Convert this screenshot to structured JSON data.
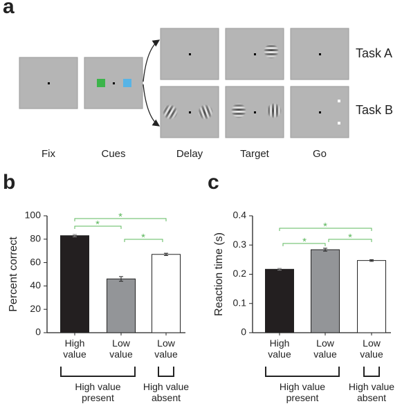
{
  "panel_labels": [
    "a",
    "b",
    "c"
  ],
  "diagram": {
    "stages": [
      "Fix",
      "Cues",
      "Delay",
      "Target",
      "Go"
    ],
    "tasks": [
      "Task A",
      "Task B"
    ]
  },
  "chart_data": [
    {
      "type": "bar",
      "ylabel": "Percent correct",
      "categories": [
        "High value",
        "Low value",
        "Low value"
      ],
      "values": [
        83,
        46,
        67
      ],
      "errors": [
        1,
        2,
        1
      ],
      "colors": [
        "#231f20",
        "#939598",
        "#ffffff"
      ],
      "ylim": [
        0,
        100
      ],
      "yticks": [
        0,
        20,
        40,
        60,
        80,
        100
      ],
      "groups": [
        "High value present",
        "High value absent"
      ],
      "annotations": [
        "*",
        "*",
        "*"
      ],
      "annotation_color": "#5cb85c"
    },
    {
      "type": "bar",
      "ylabel": "Reaction time (s)",
      "categories": [
        "High value",
        "Low value",
        "Low value"
      ],
      "values": [
        0.217,
        0.284,
        0.247
      ],
      "errors": [
        0.003,
        0.005,
        0.003
      ],
      "colors": [
        "#231f20",
        "#939598",
        "#ffffff"
      ],
      "ylim": [
        0,
        0.4
      ],
      "yticks": [
        0,
        0.1,
        0.2,
        0.3,
        0.4
      ],
      "groups": [
        "High value present",
        "High value absent"
      ],
      "annotations": [
        "*",
        "*",
        "*"
      ],
      "annotation_color": "#5cb85c"
    }
  ]
}
